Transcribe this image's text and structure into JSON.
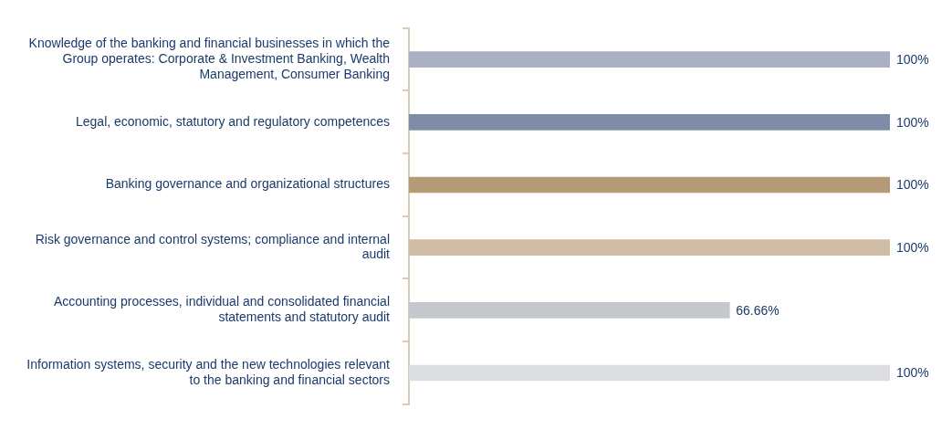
{
  "chart_data": {
    "type": "bar",
    "orientation": "horizontal",
    "tick_labels": "y",
    "xlim": [
      0,
      100
    ],
    "categories": [
      "Knowledge of the banking and financial businesses in which the Group operates: Corporate & Investment Banking, Wealth Management, Consumer Banking",
      "Legal, economic, statutory and regulatory competences",
      "Banking governance and organizational structures",
      "Risk governance and control systems; compliance and internal audit",
      "Accounting processes, individual and consolidated financial statements and statutory audit",
      "Information systems, security and the new technologies relevant to the banking and financial sectors"
    ],
    "values": [
      100,
      100,
      100,
      100,
      66.66,
      100
    ],
    "colors": [
      "#aab1c4",
      "#7f8ca8",
      "#b59a78",
      "#d1bca5",
      "#c5c8cc",
      "#dcdddf"
    ],
    "value_labels": [
      "100%",
      "100%",
      "100%",
      "100%",
      "66.66%",
      "100%"
    ]
  }
}
